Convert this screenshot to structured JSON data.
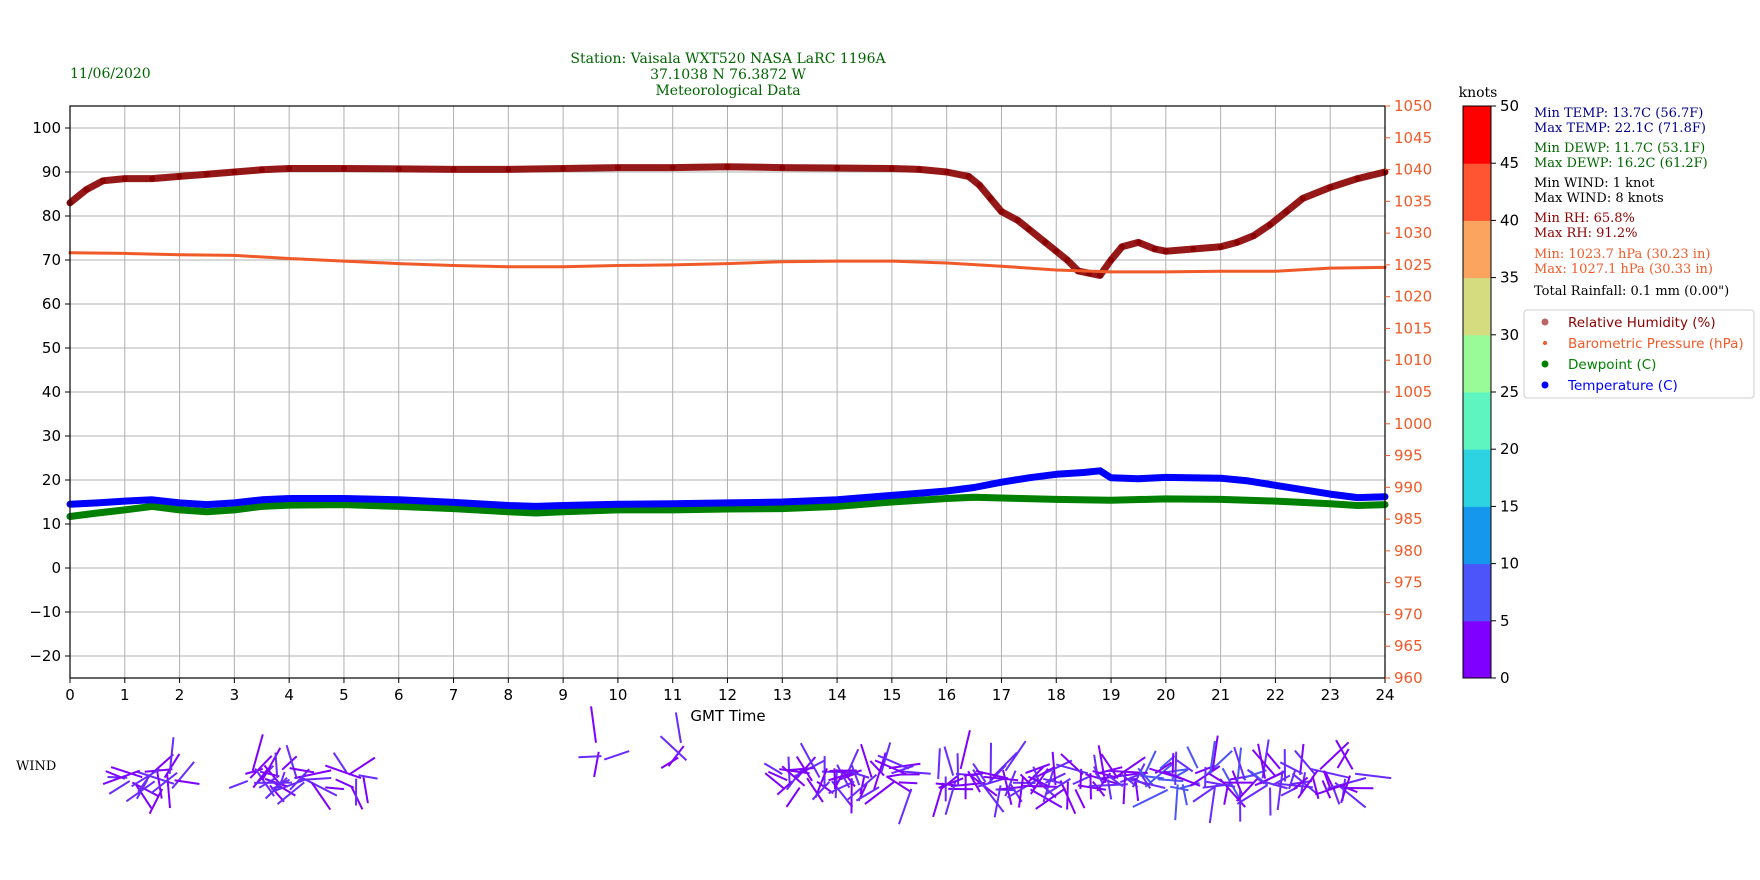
{
  "header": {
    "date": "11/06/2020",
    "title_line1": "Station:  Vaisala WXT520  NASA LaRC 1196A",
    "title_line2": "37.1038 N 76.3872 W",
    "title_line3": "Meteorological Data"
  },
  "colors": {
    "header_text": "#006400",
    "rh": "#8b0000",
    "pressure": "#f05a28",
    "dewpoint": "#008000",
    "temperature": "#0000ff",
    "wind": "#7f00ff"
  },
  "stats": {
    "min_temp": "Min TEMP: 13.7C (56.7F)",
    "max_temp": "Max TEMP: 22.1C (71.8F)",
    "min_dewp": "Min DEWP: 11.7C (53.1F)",
    "max_dewp": "Max DEWP: 16.2C (61.2F)",
    "min_wind": "Min WIND: 1 knot",
    "max_wind": "Max WIND: 8 knots",
    "min_rh": "Min RH: 65.8%",
    "max_rh": "Max RH: 91.2%",
    "min_pres": "Min: 1023.7 hPa (30.23 in)",
    "max_pres": "Max: 1027.1 hPa (30.33 in)",
    "rain": "Total Rainfall: 0.1 mm (0.00\")"
  },
  "legend": [
    {
      "label": "Relative Humidity (%)",
      "color": "#8b0000"
    },
    {
      "label": "Barometric Pressure (hPa)",
      "color": "#f05a28"
    },
    {
      "label": "Dewpoint (C)",
      "color": "#008000"
    },
    {
      "label": "Temperature (C)",
      "color": "#0000ff"
    }
  ],
  "colorbar": {
    "title": "knots",
    "ticks": [
      0,
      5,
      10,
      15,
      20,
      25,
      30,
      35,
      40,
      45,
      50
    ],
    "colors": [
      "#8000ff",
      "#4b55fa",
      "#1597ed",
      "#2dd3e0",
      "#5ff5c0",
      "#98fb98",
      "#d4dc7f",
      "#fba460",
      "#ff5532",
      "#ff0000"
    ]
  },
  "wind_label": "WIND",
  "chart_data": {
    "type": "line",
    "xlabel": "GMT Time",
    "xlim": [
      0,
      24
    ],
    "xticks": [
      0,
      1,
      2,
      3,
      4,
      5,
      6,
      7,
      8,
      9,
      10,
      11,
      12,
      13,
      14,
      15,
      16,
      17,
      18,
      19,
      20,
      21,
      22,
      23,
      24
    ],
    "ylim_left": [
      -25,
      105
    ],
    "yticks_left": [
      -20,
      -10,
      0,
      10,
      20,
      30,
      40,
      50,
      60,
      70,
      80,
      90,
      100
    ],
    "ylim_right": [
      960,
      1050
    ],
    "yticks_right": [
      960,
      965,
      970,
      975,
      980,
      985,
      990,
      995,
      1000,
      1005,
      1010,
      1015,
      1020,
      1025,
      1030,
      1035,
      1040,
      1045,
      1050
    ],
    "grid": true,
    "legend_position": "right",
    "series": [
      {
        "name": "Relative Humidity (%)",
        "axis": "left",
        "points": [
          [
            0,
            83
          ],
          [
            0.3,
            86
          ],
          [
            0.6,
            88
          ],
          [
            1,
            88.5
          ],
          [
            1.5,
            88.5
          ],
          [
            2,
            89
          ],
          [
            2.5,
            89.5
          ],
          [
            3,
            90
          ],
          [
            3.5,
            90.5
          ],
          [
            4,
            90.8
          ],
          [
            5,
            90.8
          ],
          [
            6,
            90.7
          ],
          [
            7,
            90.6
          ],
          [
            8,
            90.6
          ],
          [
            9,
            90.8
          ],
          [
            10,
            91
          ],
          [
            11,
            91
          ],
          [
            12,
            91.2
          ],
          [
            13,
            91
          ],
          [
            14,
            90.9
          ],
          [
            15,
            90.8
          ],
          [
            15.5,
            90.6
          ],
          [
            16,
            90
          ],
          [
            16.4,
            89
          ],
          [
            16.6,
            87
          ],
          [
            16.8,
            84
          ],
          [
            17,
            81
          ],
          [
            17.3,
            79
          ],
          [
            17.5,
            77
          ],
          [
            17.8,
            74
          ],
          [
            18,
            72
          ],
          [
            18.2,
            70
          ],
          [
            18.4,
            67.5
          ],
          [
            18.6,
            67
          ],
          [
            18.8,
            66.5
          ],
          [
            19,
            70
          ],
          [
            19.2,
            73
          ],
          [
            19.5,
            74
          ],
          [
            19.8,
            72.5
          ],
          [
            20,
            72
          ],
          [
            20.5,
            72.5
          ],
          [
            21,
            73
          ],
          [
            21.3,
            74
          ],
          [
            21.6,
            75.5
          ],
          [
            21.9,
            78
          ],
          [
            22.2,
            81
          ],
          [
            22.5,
            84
          ],
          [
            23,
            86.5
          ],
          [
            23.5,
            88.5
          ],
          [
            24,
            90
          ]
        ]
      },
      {
        "name": "Barometric Pressure (hPa)",
        "axis": "right",
        "points": [
          [
            0,
            1026.9
          ],
          [
            1,
            1026.8
          ],
          [
            2,
            1026.6
          ],
          [
            3,
            1026.5
          ],
          [
            4,
            1026
          ],
          [
            5,
            1025.6
          ],
          [
            6,
            1025.2
          ],
          [
            7,
            1024.9
          ],
          [
            8,
            1024.7
          ],
          [
            9,
            1024.7
          ],
          [
            10,
            1024.9
          ],
          [
            11,
            1025
          ],
          [
            12,
            1025.2
          ],
          [
            13,
            1025.5
          ],
          [
            14,
            1025.6
          ],
          [
            15,
            1025.6
          ],
          [
            16,
            1025.3
          ],
          [
            17,
            1024.8
          ],
          [
            18,
            1024.2
          ],
          [
            19,
            1023.9
          ],
          [
            20,
            1023.9
          ],
          [
            21,
            1024
          ],
          [
            22,
            1024
          ],
          [
            23,
            1024.5
          ],
          [
            24,
            1024.6
          ]
        ]
      },
      {
        "name": "Dewpoint (C)",
        "axis": "left",
        "points": [
          [
            0,
            11.7
          ],
          [
            0.5,
            12.5
          ],
          [
            1,
            13.2
          ],
          [
            1.5,
            14
          ],
          [
            2,
            13.2
          ],
          [
            2.5,
            12.8
          ],
          [
            3,
            13.2
          ],
          [
            3.5,
            14
          ],
          [
            4,
            14.3
          ],
          [
            5,
            14.4
          ],
          [
            6,
            14
          ],
          [
            7,
            13.5
          ],
          [
            8,
            12.8
          ],
          [
            8.5,
            12.5
          ],
          [
            9,
            12.8
          ],
          [
            10,
            13.2
          ],
          [
            11,
            13.2
          ],
          [
            12,
            13.4
          ],
          [
            13,
            13.5
          ],
          [
            14,
            14
          ],
          [
            15,
            15
          ],
          [
            16,
            15.8
          ],
          [
            16.5,
            16.1
          ],
          [
            17,
            15.9
          ],
          [
            18,
            15.6
          ],
          [
            19,
            15.4
          ],
          [
            20,
            15.7
          ],
          [
            21,
            15.6
          ],
          [
            22,
            15.2
          ],
          [
            23,
            14.6
          ],
          [
            23.5,
            14.2
          ],
          [
            24,
            14.4
          ]
        ]
      },
      {
        "name": "Temperature (C)",
        "axis": "left",
        "points": [
          [
            0,
            14.5
          ],
          [
            0.5,
            14.8
          ],
          [
            1,
            15.2
          ],
          [
            1.5,
            15.5
          ],
          [
            2,
            14.8
          ],
          [
            2.5,
            14.4
          ],
          [
            3,
            14.8
          ],
          [
            3.5,
            15.5
          ],
          [
            4,
            15.8
          ],
          [
            5,
            15.8
          ],
          [
            6,
            15.5
          ],
          [
            7,
            14.9
          ],
          [
            8,
            14.2
          ],
          [
            8.5,
            14
          ],
          [
            9,
            14.2
          ],
          [
            10,
            14.5
          ],
          [
            11,
            14.6
          ],
          [
            12,
            14.8
          ],
          [
            13,
            15
          ],
          [
            14,
            15.5
          ],
          [
            15,
            16.5
          ],
          [
            15.5,
            17
          ],
          [
            16,
            17.5
          ],
          [
            16.5,
            18.3
          ],
          [
            17,
            19.5
          ],
          [
            17.5,
            20.5
          ],
          [
            18,
            21.3
          ],
          [
            18.5,
            21.7
          ],
          [
            18.8,
            22.1
          ],
          [
            19,
            20.5
          ],
          [
            19.5,
            20.3
          ],
          [
            20,
            20.6
          ],
          [
            21,
            20.4
          ],
          [
            21.5,
            19.8
          ],
          [
            22,
            18.8
          ],
          [
            22.5,
            17.8
          ],
          [
            23,
            16.8
          ],
          [
            23.5,
            16
          ],
          [
            24,
            16.2
          ]
        ]
      }
    ]
  }
}
